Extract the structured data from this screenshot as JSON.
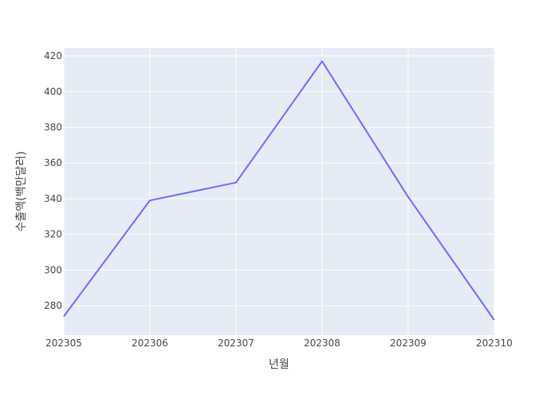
{
  "chart_data": {
    "type": "line",
    "title": "",
    "xlabel": "년월",
    "ylabel": "수출액(백만달러)",
    "categories": [
      "202305",
      "202306",
      "202307",
      "202308",
      "202309",
      "202310"
    ],
    "series": [
      {
        "values": [
          274,
          339,
          349,
          417,
          341,
          272
        ]
      }
    ],
    "ylim": [
      263.5,
      424.5
    ],
    "yticks": [
      280,
      300,
      320,
      340,
      360,
      380,
      400,
      420
    ],
    "grid": true,
    "legend": "none",
    "colors": {
      "line": "#636efa",
      "plot_background": "#e5ecf6",
      "grid": "#ffffff",
      "text": "#444444"
    }
  }
}
